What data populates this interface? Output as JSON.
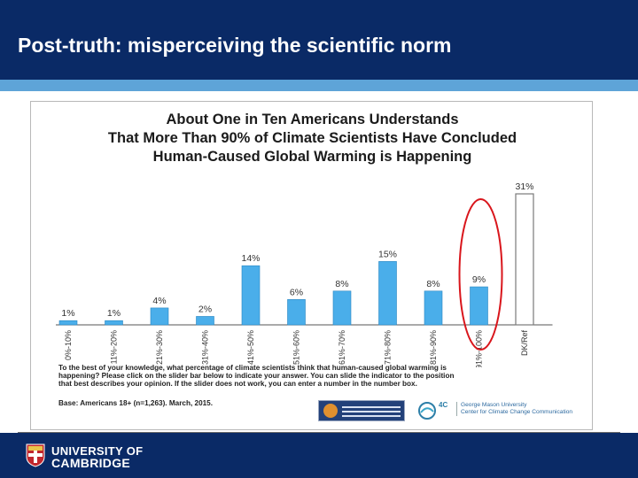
{
  "slide": {
    "title": "Post-truth: misperceiving the scientific norm"
  },
  "colors": {
    "header_bg": "#0a2a66",
    "header_band": "#5ea4d8",
    "bar_fill": "#4aaeea",
    "last_bar_fill": "#ffffff",
    "highlight_circle": "#d9161c"
  },
  "chart_data": {
    "type": "bar",
    "title_lines": [
      "About One in Ten Americans Understands",
      "That More Than 90% of Climate Scientists Have Concluded",
      "Human-Caused Global Warming is Happening"
    ],
    "categories": [
      "0%-10%",
      "11%-20%",
      "21%-30%",
      "31%-40%",
      "41%-50%",
      "51%-60%",
      "61%-70%",
      "71%-80%",
      "81%-90%",
      "91%-100%",
      "DK/Ref"
    ],
    "values": [
      1,
      1,
      4,
      2,
      14,
      6,
      8,
      15,
      8,
      9,
      31
    ],
    "value_labels": [
      "1%",
      "1%",
      "4%",
      "2%",
      "14%",
      "6%",
      "8%",
      "15%",
      "8%",
      "9%",
      "31%"
    ],
    "highlighted_category": "91%-100%",
    "xlabel": "",
    "ylabel": "",
    "ylim": [
      0,
      31
    ],
    "grid": false,
    "legend": "none",
    "footnote_lines": [
      "To the best of your knowledge, what percentage of climate scientists think that human-caused global warming is",
      "happening? Please click on the slider bar below to indicate your answer. You can slide the indicator to the position",
      "that best describes your opinion. If the slider does not work, you can enter a number in the number box."
    ],
    "base_note": "Base: Americans 18+ (n=1,263). March, 2015."
  },
  "logos": {
    "gmu_text_lines": [
      "George Mason University",
      "Center for Climate Change Communication"
    ],
    "gmu_mark": "4C"
  },
  "footer": {
    "university_lines": [
      "UNIVERSITY OF",
      "CAMBRIDGE"
    ]
  }
}
